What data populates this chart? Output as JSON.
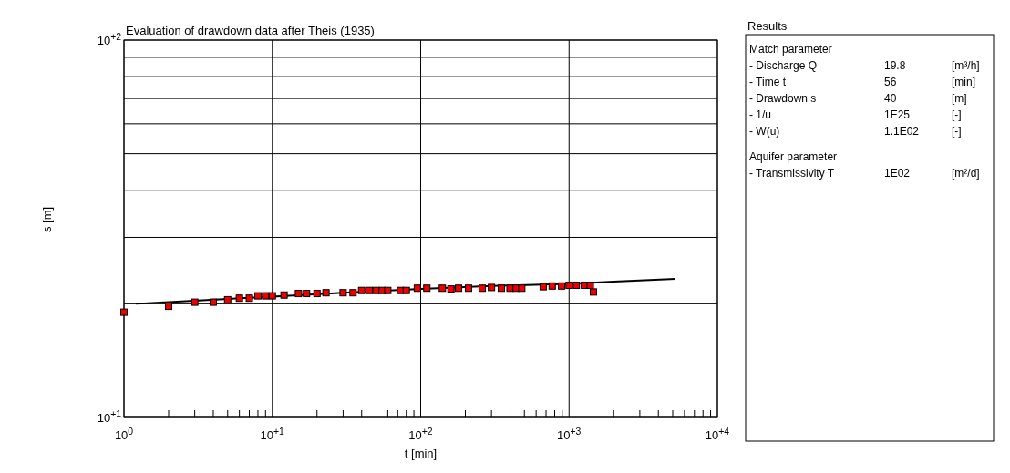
{
  "chart_data": [
    {
      "type": "scatter",
      "title": "Evaluation of drawdown data after Theis (1935)",
      "xlabel": "t [min]",
      "ylabel": "s [m]",
      "log": "xy",
      "grid": true,
      "xlim": [
        1,
        10000
      ],
      "ylim": [
        10,
        100
      ],
      "xticks": [
        {
          "value": 1,
          "label": "10$^{0}$"
        },
        {
          "value": 2,
          "label": null
        },
        {
          "value": 3,
          "label": null
        },
        {
          "value": 4,
          "label": null
        },
        {
          "value": 5,
          "label": null
        },
        {
          "value": 6,
          "label": null
        },
        {
          "value": 7,
          "label": null
        },
        {
          "value": 8,
          "label": null
        },
        {
          "value": 9,
          "label": null
        },
        {
          "value": 10,
          "label": "10$^{+1}$"
        },
        {
          "value": 20,
          "label": null
        },
        {
          "value": 30,
          "label": null
        },
        {
          "value": 40,
          "label": null
        },
        {
          "value": 50,
          "label": null
        },
        {
          "value": 60,
          "label": null
        },
        {
          "value": 70,
          "label": null
        },
        {
          "value": 80,
          "label": null
        },
        {
          "value": 90,
          "label": null
        },
        {
          "value": 100,
          "label": "10$^{+2}$"
        },
        {
          "value": 200,
          "label": null
        },
        {
          "value": 300,
          "label": null
        },
        {
          "value": 400,
          "label": null
        },
        {
          "value": 500,
          "label": null
        },
        {
          "value": 600,
          "label": null
        },
        {
          "value": 700,
          "label": null
        },
        {
          "value": 800,
          "label": null
        },
        {
          "value": 900,
          "label": null
        },
        {
          "value": 1000,
          "label": "10$^{+3}$"
        },
        {
          "value": 2000,
          "label": null
        },
        {
          "value": 3000,
          "label": null
        },
        {
          "value": 4000,
          "label": null
        },
        {
          "value": 5000,
          "label": null
        },
        {
          "value": 6000,
          "label": null
        },
        {
          "value": 7000,
          "label": null
        },
        {
          "value": 8000,
          "label": null
        },
        {
          "value": 9000,
          "label": null
        },
        {
          "value": 10000,
          "label": "10$^{+4}$"
        }
      ],
      "yticks": [
        {
          "value": 10,
          "label": "10$^{+1}$"
        },
        {
          "value": 20,
          "label": null
        },
        {
          "value": 30,
          "label": null
        },
        {
          "value": 40,
          "label": null
        },
        {
          "value": 50,
          "label": null
        },
        {
          "value": 60,
          "label": null
        },
        {
          "value": 70,
          "label": null
        },
        {
          "value": 80,
          "label": null
        },
        {
          "value": 90,
          "label": null
        },
        {
          "value": 100,
          "label": "10$^{+2}$"
        }
      ],
      "series": [
        {
          "type": "scatter",
          "marker": "square",
          "color": "#ee0000",
          "x": [
            1,
            2,
            3,
            4,
            5,
            6,
            7,
            8,
            9,
            10,
            12,
            15,
            17,
            20,
            23,
            30,
            35,
            40,
            45,
            50,
            55,
            60,
            73,
            80,
            95,
            110,
            140,
            160,
            180,
            210,
            260,
            300,
            350,
            400,
            440,
            480,
            670,
            770,
            890,
            1000,
            1120,
            1270,
            1390,
            1460
          ],
          "values": [
            19.0,
            19.7,
            20.2,
            20.2,
            20.5,
            20.7,
            20.7,
            21.0,
            21.0,
            21.0,
            21.1,
            21.3,
            21.3,
            21.3,
            21.4,
            21.4,
            21.4,
            21.7,
            21.7,
            21.7,
            21.7,
            21.7,
            21.7,
            21.7,
            22.0,
            22.0,
            22.0,
            21.9,
            22.0,
            22.0,
            22.0,
            22.1,
            22.0,
            22.0,
            22.0,
            22.0,
            22.2,
            22.3,
            22.3,
            22.4,
            22.4,
            22.4,
            22.4,
            21.5
          ]
        },
        {
          "type": "line",
          "color": "#000000",
          "x": [
            1.2,
            2,
            5,
            10,
            30,
            100,
            300,
            1000,
            2000,
            5200
          ],
          "values": [
            20.0,
            20.2,
            20.6,
            20.9,
            21.4,
            21.9,
            22.3,
            22.6,
            22.9,
            23.3
          ]
        }
      ]
    },
    {
      "type": "other",
      "title": "Results",
      "annotations": [
        "Match parameter",
        "- Discharge Q\t19.8\t[m³/h]",
        "- Time t\t56\t[min]",
        "- Drawdown s\t40\t[m]",
        "- 1/u\t1E25\t[-]",
        "- W(u)\t1.1E02\t[-]",
        "Aquifer parameter",
        "- Transmissivity T\t1E02\t[m²/d]"
      ]
    }
  ]
}
